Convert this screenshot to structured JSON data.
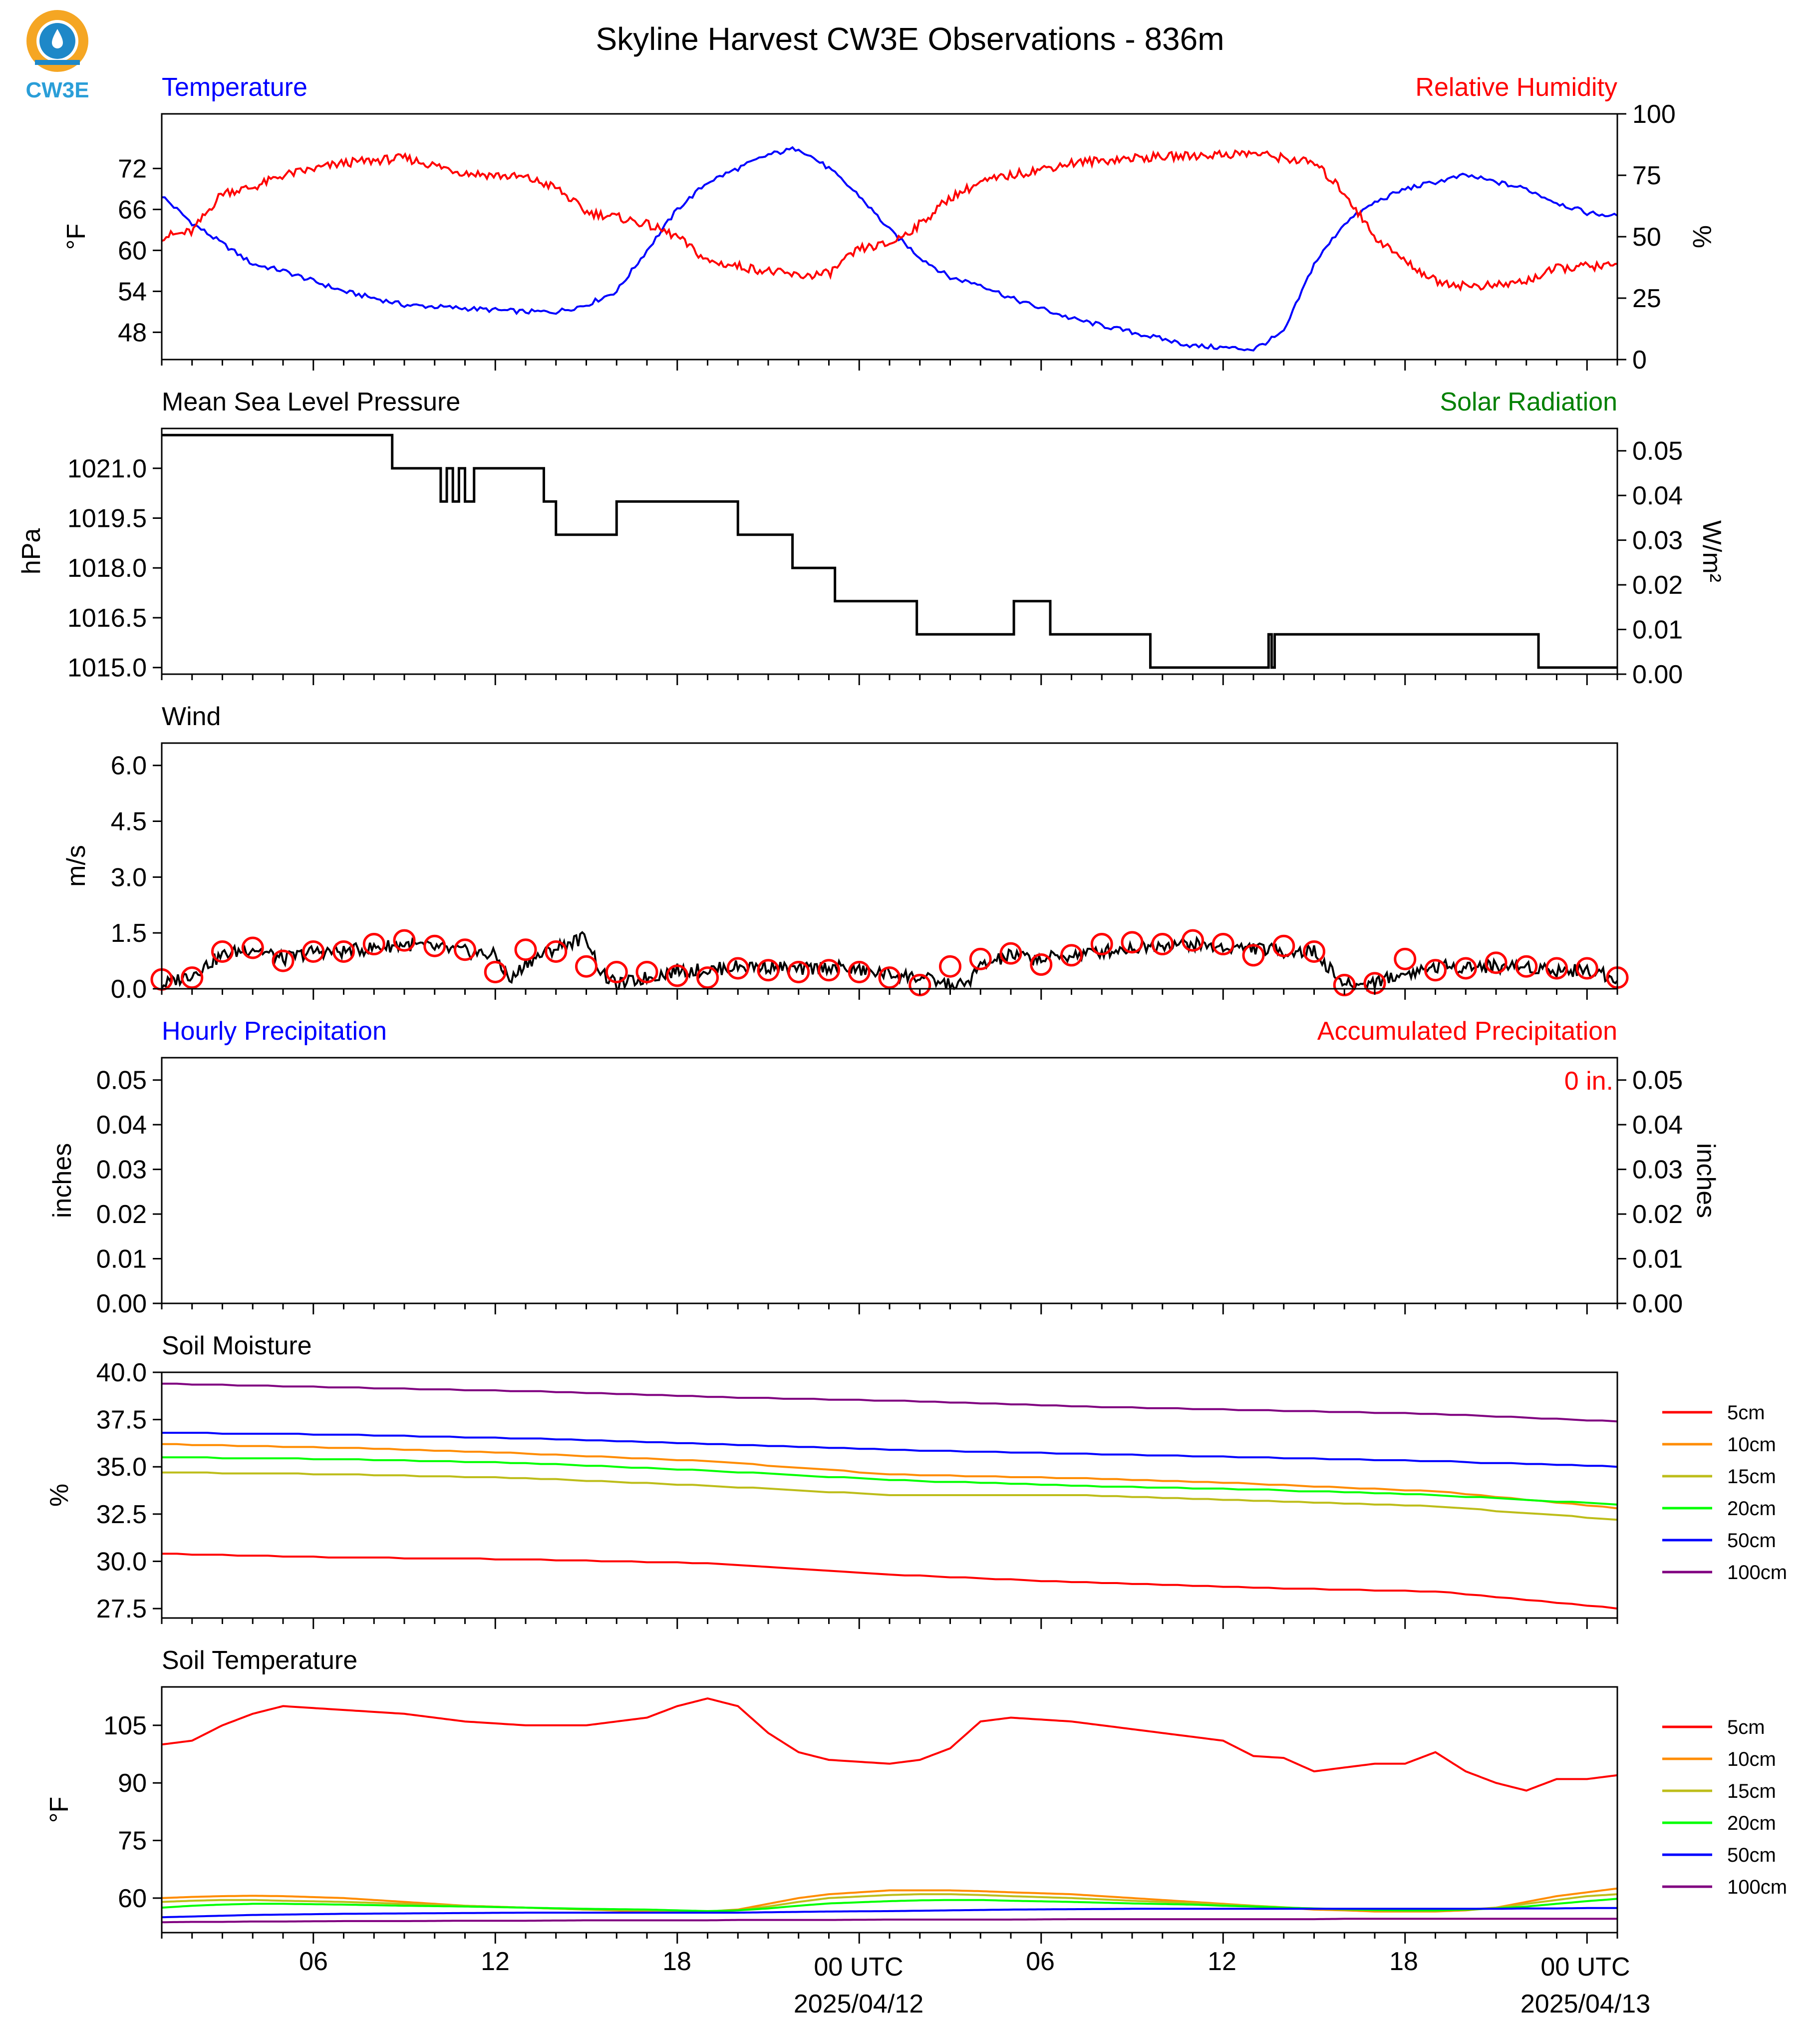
{
  "title": "Skyline Harvest CW3E Observations - 836m",
  "logo": {
    "text": "CW3E",
    "ring_color": "#F5A623",
    "drop_color": "#1E88C8",
    "text_color": "#2A9ED8"
  },
  "x_axis": {
    "tick_labels": [
      "06",
      "12",
      "18",
      "00 UTC",
      "06",
      "12",
      "18",
      "00 UTC"
    ],
    "date_labels": [
      "2025/04/12",
      "2025/04/13"
    ]
  },
  "colors": {
    "red": "#FF0000",
    "blue": "#0000FF",
    "green": "#008000",
    "black": "#000000",
    "orange": "#FF8C00",
    "olive": "#BDBD1A",
    "lime": "#00FF00",
    "purple": "#800080"
  },
  "chart_data": [
    {
      "type": "line",
      "panel": "temperature_rh",
      "left_title": "Temperature",
      "right_title": "Relative Humidity",
      "ylabel": "°F",
      "y2label": "%",
      "ylim": [
        44,
        80
      ],
      "y2lim": [
        0,
        100
      ],
      "yticks": [
        48,
        54,
        60,
        66,
        72
      ],
      "y2ticks": [
        0,
        25,
        50,
        75,
        100
      ],
      "x_hours": [
        0,
        1,
        2,
        3,
        4,
        6,
        8,
        10,
        12,
        13,
        14,
        15,
        16,
        17,
        18,
        19,
        20,
        21,
        22,
        23,
        24,
        25,
        26,
        27,
        28,
        30,
        32,
        34,
        36,
        37,
        38,
        39,
        40,
        41,
        42,
        43,
        44,
        45,
        46,
        47,
        48
      ],
      "series": [
        {
          "name": "Temperature",
          "axis": "left",
          "color": "#0000FF",
          "values": [
            68,
            64,
            61,
            58,
            57,
            54,
            52,
            51.5,
            51,
            51,
            52,
            54,
            60,
            66,
            70,
            72,
            74,
            75,
            72,
            68,
            63,
            59,
            56,
            55,
            53,
            50,
            48,
            46,
            45.5,
            48,
            58,
            64,
            67,
            69,
            70,
            71,
            70,
            69,
            67,
            65.5,
            65
          ]
        },
        {
          "name": "Relative Humidity",
          "axis": "right",
          "color": "#FF0000",
          "values": [
            50,
            52,
            68,
            70,
            75,
            80,
            82,
            76,
            74,
            70,
            60,
            58,
            55,
            50,
            40,
            38,
            36,
            34,
            35,
            45,
            47,
            55,
            66,
            72,
            75,
            80,
            82,
            83,
            84,
            82,
            80,
            68,
            50,
            40,
            32,
            30,
            30,
            32,
            37,
            38,
            38
          ]
        }
      ]
    },
    {
      "type": "line",
      "panel": "pressure",
      "left_title": "Mean Sea Level Pressure",
      "right_title": "Solar Radiation",
      "ylabel": "hPa",
      "y2label": "W/m²",
      "ylim": [
        1014.8,
        1022.2
      ],
      "y2lim": [
        0,
        0.055
      ],
      "yticks": [
        1015.0,
        1016.5,
        1018.0,
        1019.5,
        1021.0
      ],
      "y2ticks": [
        0.0,
        0.01,
        0.02,
        0.03,
        0.04,
        0.05
      ],
      "series": [
        {
          "name": "Mean Sea Level Pressure",
          "axis": "left",
          "color": "#000000",
          "step": true,
          "x": [
            0,
            7.6,
            9.2,
            9.4,
            9.6,
            9.8,
            10.0,
            10.3,
            12.6,
            13.0,
            15.0,
            19.0,
            20.8,
            22.2,
            24.9,
            28.1,
            29.3,
            32.6,
            36.5,
            36.6,
            36.7,
            45.4,
            48
          ],
          "values": [
            1022.0,
            1021.0,
            1020.0,
            1021.0,
            1020.0,
            1021.0,
            1020.0,
            1021.0,
            1020.0,
            1019.0,
            1020.0,
            1019.0,
            1018.0,
            1017.0,
            1016.0,
            1017.0,
            1016.0,
            1015.0,
            1016.0,
            1015.0,
            1016.0,
            1015.0,
            1015.0
          ]
        }
      ]
    },
    {
      "type": "line",
      "panel": "wind",
      "left_title": "Wind",
      "ylabel": "m/s",
      "ylim": [
        0,
        6.6
      ],
      "yticks": [
        0.0,
        1.5,
        3.0,
        4.5,
        6.0
      ],
      "series": [
        {
          "name": "Wind",
          "color": "#000000",
          "x": [
            0,
            1,
            2,
            3,
            4,
            5,
            6,
            7,
            8,
            9,
            10,
            11,
            11.5,
            12,
            13,
            14,
            14.5,
            15,
            16,
            17,
            18,
            19,
            20,
            21,
            22,
            23,
            24,
            25,
            26,
            26.5,
            27,
            28,
            29,
            30,
            31,
            32,
            33,
            34,
            35,
            36,
            37,
            38,
            39,
            39.5,
            40,
            41,
            42,
            43,
            44,
            45,
            46,
            47,
            48
          ],
          "values": [
            0.1,
            0.4,
            0.9,
            1.1,
            0.8,
            1.0,
            1.0,
            1.1,
            1.2,
            1.1,
            1.0,
            0.9,
            0.2,
            0.7,
            1.1,
            1.4,
            0.4,
            0.1,
            0.3,
            0.5,
            0.5,
            0.6,
            0.6,
            0.5,
            0.6,
            0.5,
            0.4,
            0.3,
            0.1,
            0.1,
            0.6,
            0.9,
            0.8,
            0.9,
            1.0,
            1.1,
            1.2,
            1.2,
            1.1,
            1.1,
            1.0,
            1.0,
            0.1,
            0.1,
            0.2,
            0.4,
            0.6,
            0.6,
            0.6,
            0.6,
            0.5,
            0.5,
            0.3
          ]
        },
        {
          "name": "Wind gust markers",
          "color": "#FF0000",
          "marker": "circle",
          "x": [
            0,
            1,
            2,
            3,
            4,
            5,
            6,
            7,
            8,
            9,
            10,
            11,
            12,
            13,
            14,
            15,
            16,
            17,
            18,
            19,
            20,
            21,
            22,
            23,
            24,
            25,
            26,
            27,
            28,
            29,
            30,
            31,
            32,
            33,
            34,
            35,
            36,
            37,
            38,
            39,
            40,
            41,
            42,
            43,
            44,
            45,
            46,
            47,
            48
          ],
          "values": [
            0.25,
            0.3,
            1.0,
            1.1,
            0.75,
            1.0,
            1.0,
            1.2,
            1.3,
            1.15,
            1.05,
            0.45,
            1.05,
            1.0,
            0.6,
            0.45,
            0.45,
            0.35,
            0.3,
            0.55,
            0.5,
            0.45,
            0.5,
            0.45,
            0.3,
            0.1,
            0.6,
            0.8,
            0.95,
            0.65,
            0.9,
            1.2,
            1.25,
            1.2,
            1.3,
            1.2,
            0.9,
            1.15,
            1.0,
            0.1,
            0.15,
            0.8,
            0.5,
            0.55,
            0.7,
            0.6,
            0.55,
            0.55,
            0.3
          ]
        }
      ]
    },
    {
      "type": "bar",
      "panel": "precipitation",
      "left_title": "Hourly Precipitation",
      "right_title": "Accumulated Precipitation",
      "accumulated_label": "0 in.",
      "ylabel": "inches",
      "y2label": "inches",
      "ylim": [
        0,
        0.055
      ],
      "yticks": [
        0.0,
        0.01,
        0.02,
        0.03,
        0.04,
        0.05
      ],
      "series": [
        {
          "name": "Hourly Precipitation",
          "color": "#0000FF",
          "values": [
            0
          ]
        },
        {
          "name": "Accumulated Precipitation",
          "color": "#FF0000",
          "values": [
            0
          ]
        }
      ]
    },
    {
      "type": "line",
      "panel": "soil_moisture",
      "left_title": "Soil Moisture",
      "ylabel": "%",
      "ylim": [
        27,
        40
      ],
      "yticks": [
        27.5,
        30.0,
        32.5,
        35.0,
        37.5,
        40.0
      ],
      "x_hours": [
        0,
        6,
        12,
        18,
        24,
        30,
        36,
        42,
        48
      ],
      "series": [
        {
          "name": "5cm",
          "color": "#FF0000",
          "values": [
            30.4,
            30.2,
            30.1,
            29.9,
            29.3,
            28.9,
            28.6,
            28.4,
            27.5
          ]
        },
        {
          "name": "10cm",
          "color": "#FF8C00",
          "values": [
            36.2,
            36.0,
            35.7,
            35.3,
            34.6,
            34.4,
            34.1,
            33.7,
            32.8
          ]
        },
        {
          "name": "15cm",
          "color": "#BDBD1A",
          "values": [
            34.7,
            34.6,
            34.4,
            34.0,
            33.5,
            33.5,
            33.2,
            32.9,
            32.2
          ]
        },
        {
          "name": "20cm",
          "color": "#00FF00",
          "values": [
            35.5,
            35.4,
            35.2,
            34.8,
            34.3,
            34.0,
            33.8,
            33.5,
            33.0
          ]
        },
        {
          "name": "50cm",
          "color": "#0000FF",
          "values": [
            36.8,
            36.7,
            36.5,
            36.2,
            35.9,
            35.7,
            35.5,
            35.3,
            35.0
          ]
        },
        {
          "name": "100cm",
          "color": "#800080",
          "values": [
            39.4,
            39.2,
            39.0,
            38.7,
            38.5,
            38.2,
            38.0,
            37.8,
            37.4
          ]
        }
      ]
    },
    {
      "type": "line",
      "panel": "soil_temperature",
      "left_title": "Soil Temperature",
      "ylabel": "°F",
      "ylim": [
        51,
        115
      ],
      "yticks": [
        60,
        75,
        90,
        105
      ],
      "x_hours": [
        0,
        1,
        2,
        3,
        4,
        6,
        8,
        10,
        12,
        14,
        16,
        17,
        18,
        19,
        20,
        21,
        22,
        24,
        25,
        26,
        27,
        28,
        30,
        32,
        34,
        35,
        36,
        37,
        38,
        39,
        40,
        41,
        42,
        43,
        44,
        45,
        46,
        47,
        48
      ],
      "series": [
        {
          "name": "5cm",
          "color": "#FF0000",
          "values": [
            100,
            101,
            105,
            108,
            110,
            109,
            108,
            106,
            105,
            105,
            107,
            110,
            112,
            110,
            103,
            98,
            96,
            95,
            96,
            99,
            106,
            107,
            106,
            104,
            102,
            101,
            97,
            96.5,
            93,
            94,
            95,
            95,
            98,
            93,
            90,
            88,
            91,
            91,
            92
          ]
        },
        {
          "name": "10cm",
          "color": "#FF8C00",
          "values": [
            60,
            60.3,
            60.5,
            60.6,
            60.5,
            60,
            59,
            58,
            57.5,
            57,
            56.5,
            56.5,
            56.5,
            57,
            58.5,
            60,
            61,
            62,
            62,
            62,
            61.8,
            61.5,
            61,
            60,
            59,
            58.5,
            58,
            57.5,
            57,
            56.8,
            56.5,
            56.5,
            56.5,
            56.8,
            57.5,
            59,
            60.5,
            61.5,
            62.5
          ]
        },
        {
          "name": "15cm",
          "color": "#BDBD1A",
          "values": [
            59,
            59.3,
            59.5,
            59.5,
            59.3,
            59,
            58.5,
            58,
            57.5,
            57,
            56.8,
            56.6,
            56.5,
            56.8,
            57.8,
            59,
            60,
            60.8,
            61,
            61,
            60.8,
            60.5,
            60,
            59.3,
            58.7,
            58.3,
            58,
            57.6,
            57.2,
            57,
            56.8,
            56.7,
            56.7,
            57,
            57.5,
            58.5,
            59.5,
            60.5,
            61
          ]
        },
        {
          "name": "20cm",
          "color": "#00FF00",
          "values": [
            57.5,
            58,
            58.3,
            58.5,
            58.5,
            58.3,
            58,
            57.8,
            57.5,
            57.2,
            57,
            56.8,
            56.6,
            56.8,
            57.3,
            58,
            58.6,
            59.2,
            59.4,
            59.5,
            59.5,
            59.3,
            59,
            58.6,
            58.3,
            58,
            57.8,
            57.5,
            57.3,
            57.1,
            56.9,
            56.8,
            56.8,
            57,
            57.3,
            57.8,
            58.5,
            59.2,
            59.8
          ]
        },
        {
          "name": "50cm",
          "color": "#0000FF",
          "values": [
            55,
            55.2,
            55.4,
            55.6,
            55.7,
            55.9,
            56,
            56.1,
            56.2,
            56.2,
            56.2,
            56.2,
            56.2,
            56.2,
            56.3,
            56.4,
            56.5,
            56.6,
            56.7,
            56.8,
            56.9,
            57,
            57.1,
            57.2,
            57.2,
            57.2,
            57.2,
            57.2,
            57.2,
            57.2,
            57.2,
            57.2,
            57.2,
            57.2,
            57.2,
            57.3,
            57.3,
            57.4,
            57.4
          ]
        },
        {
          "name": "100cm",
          "color": "#800080",
          "values": [
            53.7,
            53.8,
            53.8,
            53.9,
            53.9,
            54,
            54,
            54.1,
            54.1,
            54.2,
            54.2,
            54.2,
            54.2,
            54.3,
            54.3,
            54.3,
            54.3,
            54.4,
            54.4,
            54.4,
            54.4,
            54.4,
            54.5,
            54.5,
            54.5,
            54.5,
            54.5,
            54.5,
            54.5,
            54.6,
            54.6,
            54.6,
            54.6,
            54.6,
            54.6,
            54.6,
            54.6,
            54.6,
            54.6
          ]
        }
      ]
    }
  ]
}
